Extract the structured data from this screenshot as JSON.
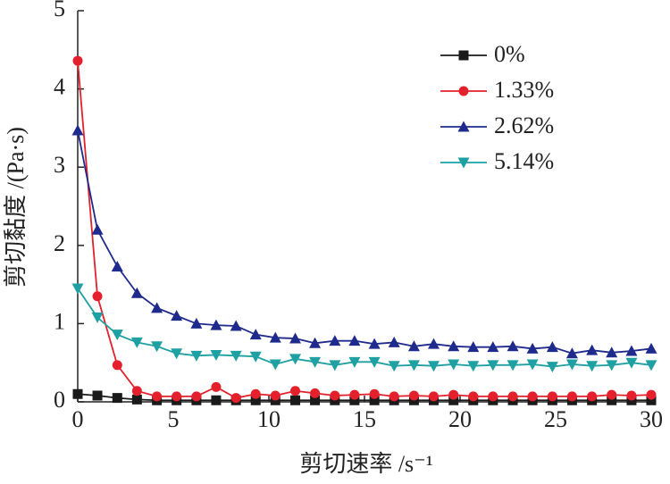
{
  "chart_data": {
    "type": "line",
    "xlabel": "剪切速率 /s⁻¹",
    "ylabel": "剪切黏度 /(Pa·s)",
    "xlim": [
      0,
      30
    ],
    "xticks": [
      0,
      5,
      10,
      15,
      20,
      25,
      30
    ],
    "ylim": [
      0,
      5
    ],
    "yticks": [
      0,
      1,
      2,
      3,
      4,
      5
    ],
    "legend": "upper right",
    "x": [
      0,
      1.03,
      2.07,
      3.1,
      4.14,
      5.17,
      6.21,
      7.24,
      8.28,
      9.31,
      10.34,
      11.38,
      12.41,
      13.45,
      14.48,
      15.52,
      16.55,
      17.59,
      18.62,
      19.66,
      20.69,
      21.72,
      22.76,
      23.79,
      24.83,
      25.86,
      26.9,
      27.93,
      28.97,
      30
    ],
    "series": [
      {
        "name": "0%",
        "color": "#1a1a1a",
        "marker": "square",
        "values": [
          0.1,
          0.08,
          0.05,
          0.03,
          0.02,
          0.02,
          0.02,
          0.02,
          0.02,
          0.02,
          0.02,
          0.02,
          0.02,
          0.02,
          0.02,
          0.02,
          0.02,
          0.02,
          0.02,
          0.02,
          0.02,
          0.02,
          0.02,
          0.02,
          0.02,
          0.02,
          0.02,
          0.02,
          0.02,
          0.02
        ]
      },
      {
        "name": "1.33%",
        "color": "#e3202b",
        "marker": "circle",
        "values": [
          4.36,
          1.35,
          0.47,
          0.14,
          0.07,
          0.07,
          0.07,
          0.19,
          0.05,
          0.1,
          0.08,
          0.14,
          0.11,
          0.08,
          0.09,
          0.1,
          0.07,
          0.08,
          0.07,
          0.09,
          0.07,
          0.07,
          0.07,
          0.07,
          0.07,
          0.07,
          0.07,
          0.09,
          0.08,
          0.09
        ]
      },
      {
        "name": "2.62%",
        "color": "#1f2b8c",
        "marker": "triangle-up",
        "values": [
          3.47,
          2.2,
          1.73,
          1.39,
          1.2,
          1.1,
          1.0,
          0.98,
          0.97,
          0.86,
          0.82,
          0.81,
          0.75,
          0.78,
          0.78,
          0.74,
          0.76,
          0.71,
          0.74,
          0.71,
          0.7,
          0.7,
          0.71,
          0.68,
          0.7,
          0.62,
          0.66,
          0.63,
          0.65,
          0.68
        ]
      },
      {
        "name": "5.14%",
        "color": "#1fa0a3",
        "marker": "triangle-down",
        "values": [
          1.45,
          1.08,
          0.86,
          0.76,
          0.71,
          0.62,
          0.59,
          0.6,
          0.59,
          0.58,
          0.48,
          0.55,
          0.51,
          0.47,
          0.51,
          0.51,
          0.46,
          0.47,
          0.46,
          0.48,
          0.46,
          0.47,
          0.47,
          0.48,
          0.45,
          0.48,
          0.46,
          0.47,
          0.5,
          0.47
        ]
      }
    ]
  }
}
